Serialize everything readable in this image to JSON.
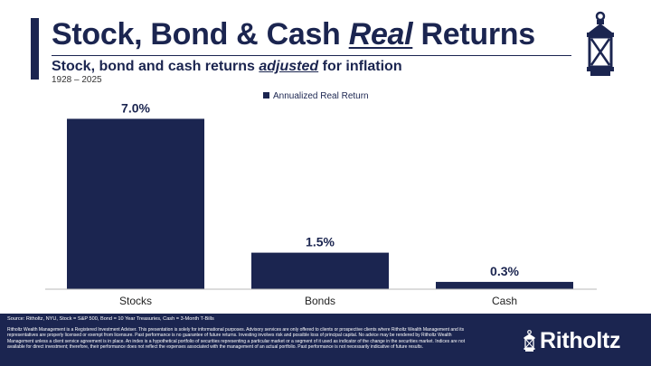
{
  "header": {
    "title_pre": "Stock, Bond & Cash ",
    "title_em": "Real",
    "title_post": " Returns",
    "subtitle_pre": "Stock, bond and cash returns ",
    "subtitle_em": "adjusted",
    "subtitle_post": " for inflation",
    "years": "1928 – 2025"
  },
  "chart_data": {
    "type": "bar",
    "categories": [
      "Stocks",
      "Bonds",
      "Cash"
    ],
    "series": [
      {
        "name": "Annualized Real Return",
        "values": [
          7.0,
          1.5,
          0.3
        ]
      }
    ],
    "data_labels": [
      "7.0%",
      "1.5%",
      "0.3%"
    ],
    "ylim": [
      0,
      7.5
    ],
    "legend_position": "top-center",
    "grid": false,
    "bar_color": "#1b2550"
  },
  "footer": {
    "source": "Source: Ritholtz, NYU, Stock = S&P 500, Bond = 10 Year Treasuries, Cash = 3-Month T-Bills",
    "disclaimer": "Ritholtz Wealth Management is a Registered Investment Adviser. This presentation is solely for informational purposes. Advisory services are only offered to clients or prospective clients where Ritholtz Wealth Management and its representatives are properly licensed or exempt from licensure. Past performance is no guarantee of future returns. Investing involves risk and possible loss of principal capital. No advice may be rendered by Ritholtz Wealth Management unless a client service agreement is in place. An index is a hypothetical portfolio of securities representing a particular market or a segment of it used as indicator of the change in the securities market. Indices are not available for direct investment; therefore, their performance does not reflect the expenses associated with the management of an actual portfolio. Past performance is not necessarily indicative of future results.",
    "brand": "Ritholtz"
  },
  "colors": {
    "navy": "#1b2550",
    "background": "#ffffff"
  }
}
